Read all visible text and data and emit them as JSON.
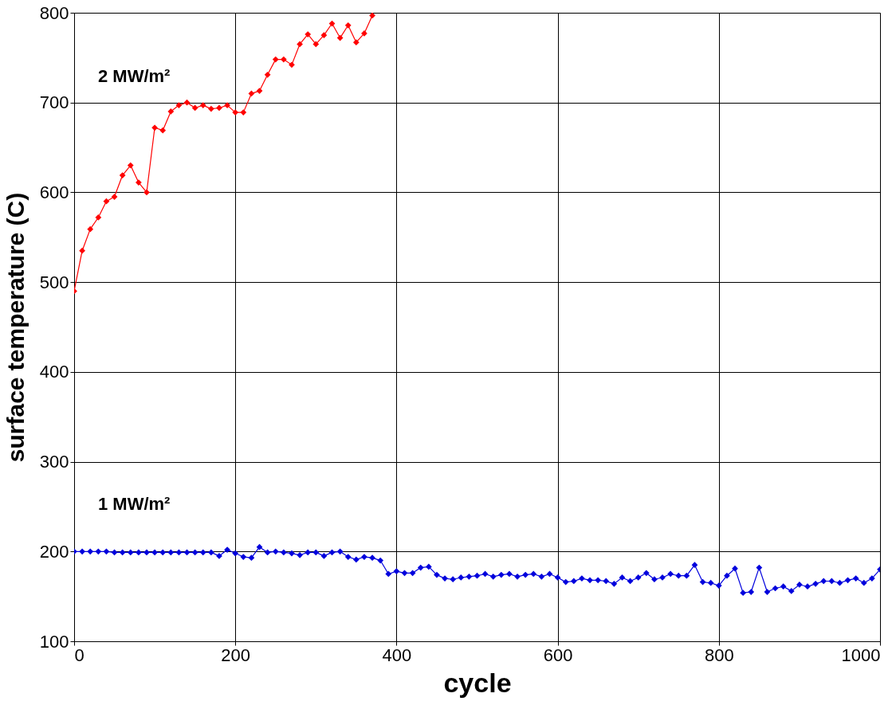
{
  "chart_data": {
    "type": "line",
    "xlabel": "cycle",
    "ylabel": "surface temperature (C)",
    "xlim": [
      0,
      1000
    ],
    "xticks": [
      0,
      200,
      400,
      600,
      800,
      1000
    ],
    "ylim": [
      100,
      800
    ],
    "yticks": [
      100,
      200,
      300,
      400,
      500,
      600,
      700,
      800
    ],
    "grid": true,
    "marker": "diamond",
    "line_style": "solid",
    "series": [
      {
        "name": "2 MW/m²",
        "color": "#ff0000",
        "x": [
          0,
          10,
          20,
          30,
          40,
          50,
          60,
          70,
          80,
          90,
          100,
          110,
          120,
          130,
          140,
          150,
          160,
          170,
          180,
          190,
          200,
          210,
          220,
          230,
          240,
          250,
          260,
          270,
          280,
          290,
          300,
          310,
          320,
          330,
          340,
          350,
          360,
          370
        ],
        "values": [
          490,
          535,
          559,
          572,
          590,
          595,
          619,
          630,
          611,
          600,
          672,
          669,
          690,
          697,
          700,
          694,
          697,
          693,
          694,
          697,
          689,
          689,
          710,
          713,
          731,
          748,
          748,
          742,
          765,
          776,
          765,
          775,
          788,
          772,
          786,
          767,
          777,
          797
        ]
      },
      {
        "name": "1 MW/m²",
        "color": "#0000dd",
        "x": [
          0,
          10,
          20,
          30,
          40,
          50,
          60,
          70,
          80,
          90,
          100,
          110,
          120,
          130,
          140,
          150,
          160,
          170,
          180,
          190,
          200,
          210,
          220,
          230,
          240,
          250,
          260,
          270,
          280,
          290,
          300,
          310,
          320,
          330,
          340,
          350,
          360,
          370,
          380,
          390,
          400,
          410,
          420,
          430,
          440,
          450,
          460,
          470,
          480,
          490,
          500,
          510,
          520,
          530,
          540,
          550,
          560,
          570,
          580,
          590,
          600,
          610,
          620,
          630,
          640,
          650,
          660,
          670,
          680,
          690,
          700,
          710,
          720,
          730,
          740,
          750,
          760,
          770,
          780,
          790,
          800,
          810,
          820,
          830,
          840,
          850,
          860,
          870,
          880,
          890,
          900,
          910,
          920,
          930,
          940,
          950,
          960,
          970,
          980,
          990,
          1000
        ],
        "values": [
          200,
          200,
          200,
          200,
          200,
          199,
          199,
          199,
          199,
          199,
          199,
          199,
          199,
          199,
          199,
          199,
          199,
          199,
          195,
          202,
          198,
          194,
          193,
          205,
          199,
          200,
          199,
          198,
          196,
          199,
          199,
          195,
          199,
          200,
          194,
          191,
          194,
          193,
          190,
          175,
          178,
          176,
          176,
          182,
          183,
          174,
          170,
          169,
          171,
          172,
          173,
          175,
          172,
          174,
          175,
          172,
          174,
          175,
          172,
          175,
          171,
          166,
          167,
          170,
          168,
          168,
          167,
          164,
          171,
          167,
          171,
          176,
          169,
          171,
          175,
          173,
          173,
          185,
          166,
          165,
          162,
          173,
          181,
          154,
          155,
          182,
          155,
          159,
          161,
          156,
          163,
          161,
          164,
          167,
          167,
          165,
          168,
          170,
          165,
          170,
          180
        ]
      }
    ]
  }
}
